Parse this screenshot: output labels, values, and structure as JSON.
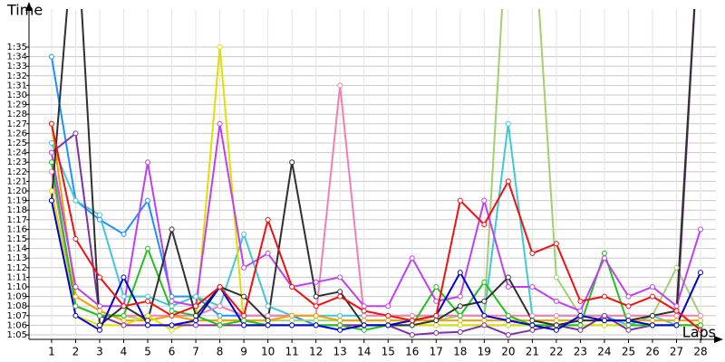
{
  "chart_data": {
    "type": "line",
    "x_label": "Laps",
    "y_label": "Time",
    "x": [
      1,
      2,
      3,
      4,
      5,
      6,
      7,
      8,
      9,
      10,
      11,
      12,
      13,
      14,
      15,
      16,
      17,
      18,
      19,
      20,
      21,
      22,
      23,
      24,
      25,
      26,
      27,
      28
    ],
    "xlim": [
      0.06,
      28.64
    ],
    "xticks": [
      1,
      2,
      3,
      4,
      5,
      6,
      7,
      8,
      9,
      10,
      11,
      12,
      13,
      14,
      15,
      16,
      17,
      18,
      19,
      20,
      21,
      22,
      23,
      24,
      25,
      26,
      27,
      28
    ],
    "ylim": [
      64.53,
      98.96
    ],
    "yticks": [
      {
        "value": 65,
        "label": "1:05"
      },
      {
        "value": 66,
        "label": "1:06"
      },
      {
        "value": 67,
        "label": "1:07"
      },
      {
        "value": 68,
        "label": "1:08"
      },
      {
        "value": 69,
        "label": "1:09"
      },
      {
        "value": 70,
        "label": "1:10"
      },
      {
        "value": 71,
        "label": "1:11"
      },
      {
        "value": 72,
        "label": "1:12"
      },
      {
        "value": 73,
        "label": "1:13"
      },
      {
        "value": 74,
        "label": "1:14"
      },
      {
        "value": 75,
        "label": "1:15"
      },
      {
        "value": 76,
        "label": "1:16"
      },
      {
        "value": 77,
        "label": "1:17"
      },
      {
        "value": 78,
        "label": "1:18"
      },
      {
        "value": 79,
        "label": "1:19"
      },
      {
        "value": 80,
        "label": "1:20"
      },
      {
        "value": 81,
        "label": "1:21"
      },
      {
        "value": 82,
        "label": "1:22"
      },
      {
        "value": 83,
        "label": "1:23"
      },
      {
        "value": 84,
        "label": "1:24"
      },
      {
        "value": 85,
        "label": "1:25"
      },
      {
        "value": 86,
        "label": "1:26"
      },
      {
        "value": 87,
        "label": "1:27"
      },
      {
        "value": 88,
        "label": "1:28"
      },
      {
        "value": 89,
        "label": "1:29"
      },
      {
        "value": 90,
        "label": "1:30"
      },
      {
        "value": 91,
        "label": "1:31"
      },
      {
        "value": 92,
        "label": "1:32"
      },
      {
        "value": 93,
        "label": "1:33"
      },
      {
        "value": 94,
        "label": "1:34"
      },
      {
        "value": 95,
        "label": "1:35"
      }
    ],
    "grid": true,
    "series": [
      {
        "color": "#1e90ff",
        "values": [
          94,
          79,
          77,
          75.5,
          79,
          69,
          69,
          67,
          67,
          67,
          67,
          66,
          66,
          66,
          66,
          66,
          66,
          66,
          66,
          66,
          66,
          66,
          66,
          66,
          66,
          66,
          66,
          66
        ]
      },
      {
        "color": "#40c8d8",
        "values": [
          85,
          79,
          77.5,
          69,
          69,
          68,
          69,
          68,
          75.5,
          68,
          67,
          67,
          67,
          67,
          67,
          67,
          67,
          67,
          67,
          87,
          67,
          67,
          67,
          67,
          66,
          67,
          66,
          66
        ]
      },
      {
        "color": "#a0d070",
        "values": [
          80,
          68,
          67,
          67,
          66.5,
          67,
          66.5,
          66.5,
          66.5,
          66.5,
          66.5,
          66.5,
          66.5,
          66.5,
          66.5,
          66.5,
          66.5,
          67,
          67,
          110,
          110,
          71,
          67,
          67,
          67,
          67,
          72,
          67
        ]
      },
      {
        "color": "#f080b0",
        "values": [
          82,
          68,
          67,
          67,
          67,
          67,
          67,
          68,
          67,
          67,
          67,
          67,
          91,
          67,
          67,
          67,
          67,
          67,
          67,
          67,
          67,
          67,
          67,
          67,
          67,
          67,
          67,
          67
        ]
      },
      {
        "color": "#f0a000",
        "values": [
          87,
          69,
          67.5,
          66.5,
          66.5,
          67,
          66.5,
          66.5,
          66.5,
          66.5,
          67,
          67,
          66.5,
          66.5,
          66.5,
          66.5,
          66.5,
          66.5,
          66.5,
          66.5,
          66.5,
          66.5,
          66.5,
          66.5,
          66.5,
          66.5,
          66.5,
          66.5
        ]
      },
      {
        "color": "#e0e000",
        "values": [
          80,
          67,
          66,
          66,
          67,
          65.5,
          66.5,
          95,
          66,
          66,
          66,
          66,
          66,
          66,
          66,
          66,
          66,
          66,
          66,
          66,
          66,
          66,
          66,
          66,
          66,
          66,
          66,
          66
        ]
      },
      {
        "color": "#8030a0",
        "values": [
          84,
          86,
          67,
          66,
          66,
          66,
          66,
          66,
          66,
          66,
          66,
          66,
          66,
          66,
          66,
          65,
          65.2,
          65.3,
          66,
          65,
          65.5,
          66,
          65.5,
          67,
          65.5,
          66,
          66,
          110
        ]
      },
      {
        "color": "#20c020",
        "values": [
          83,
          68,
          67,
          67,
          74,
          67.5,
          67,
          66,
          66.5,
          66,
          66,
          66,
          66,
          65.5,
          66,
          66,
          70,
          67,
          70.5,
          67,
          66,
          66,
          66,
          73.5,
          66,
          66,
          66,
          66
        ]
      },
      {
        "color": "#c040f0",
        "values": [
          84,
          70,
          68,
          68,
          83,
          68.5,
          68,
          87,
          72,
          73.5,
          70,
          70.5,
          71,
          68,
          68,
          73,
          68.5,
          69,
          79,
          70,
          70,
          68.5,
          67.5,
          73,
          69,
          70,
          68,
          76
        ]
      },
      {
        "color": "#303030",
        "values": [
          79,
          110,
          66,
          68,
          66.5,
          76,
          67,
          70,
          69,
          66.5,
          83,
          69,
          69.5,
          66,
          66,
          66,
          66.5,
          68,
          68.5,
          71,
          66.5,
          66,
          66.5,
          66.5,
          66.5,
          67,
          67.5,
          110
        ]
      },
      {
        "color": "#0000d0",
        "values": [
          79,
          67,
          65.5,
          71,
          66,
          66,
          66.5,
          70,
          66,
          66,
          66,
          66,
          65.5,
          66,
          66,
          66.5,
          67,
          71.5,
          67,
          66.5,
          66,
          65.5,
          67,
          66.5,
          66.5,
          66,
          66,
          71.5
        ]
      },
      {
        "color": "#f01010",
        "values": [
          87,
          75,
          71,
          68,
          68.5,
          67,
          68,
          70,
          67,
          77,
          70,
          68,
          69,
          67.5,
          67,
          66.5,
          67,
          79,
          76.5,
          81,
          73.5,
          74.5,
          68.5,
          69,
          68,
          69,
          67.5,
          65.5
        ]
      }
    ]
  }
}
